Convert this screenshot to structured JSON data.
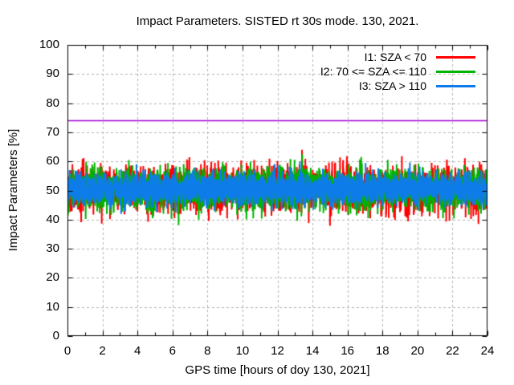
{
  "title": "Impact Parameters. SISTED rt 30s mode. 130, 2021.",
  "chart_data": {
    "type": "line",
    "title": "Impact Parameters. SISTED rt 30s mode. 130, 2021.",
    "xlabel": "GPS time [hours of doy 130, 2021]",
    "ylabel": "Impact Parameters [%]",
    "xlim": [
      0,
      24
    ],
    "ylim": [
      0,
      100
    ],
    "x_ticks": [
      0,
      2,
      4,
      6,
      8,
      10,
      12,
      14,
      16,
      18,
      20,
      22,
      24
    ],
    "x_minor_tick_step": 1,
    "y_ticks": [
      0,
      10,
      20,
      30,
      40,
      50,
      60,
      70,
      80,
      90,
      100
    ],
    "grid": {
      "show": true,
      "style": "dashed",
      "color": "#b4b4b4"
    },
    "legend": {
      "position": "top-right-inside",
      "border": false
    },
    "sampling": {
      "interval_seconds": 30
    },
    "series": [
      {
        "name": "I1: SZA < 70",
        "color": "#ff0000",
        "mean": 50.5,
        "std": 3.9,
        "observed_min": 37.5,
        "observed_max": 64.0
      },
      {
        "name": "I2: 70 <= SZA <= 110",
        "color": "#00b400",
        "mean": 50.5,
        "std": 3.5,
        "observed_min": 38.0,
        "observed_max": 62.5
      },
      {
        "name": "I3: SZA > 110",
        "color": "#0e7ce8",
        "mean": 50.5,
        "std": 2.7,
        "observed_min": 41.5,
        "observed_max": 60.0
      }
    ],
    "reference_line": {
      "y": 74,
      "color": "#a000d3"
    }
  }
}
